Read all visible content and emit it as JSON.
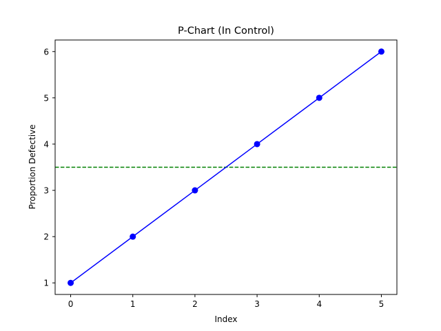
{
  "chart_data": {
    "type": "line",
    "title": "P-Chart (In Control)",
    "xlabel": "Index",
    "ylabel": "Proportion Defective",
    "x": [
      0,
      1,
      2,
      3,
      4,
      5
    ],
    "series": [
      {
        "values": [
          1,
          2,
          3,
          4,
          5,
          6
        ],
        "color": "#0000ff",
        "marker": "circle"
      }
    ],
    "reference_line": {
      "y": 3.5,
      "color": "#008000",
      "style": "dashed"
    },
    "xlim": [
      -0.25,
      5.25
    ],
    "ylim": [
      0.75,
      6.25
    ],
    "xticks": [
      "0",
      "1",
      "2",
      "3",
      "4",
      "5"
    ],
    "yticks": [
      "1",
      "2",
      "3",
      "4",
      "5",
      "6"
    ],
    "grid": false,
    "legend": false
  }
}
